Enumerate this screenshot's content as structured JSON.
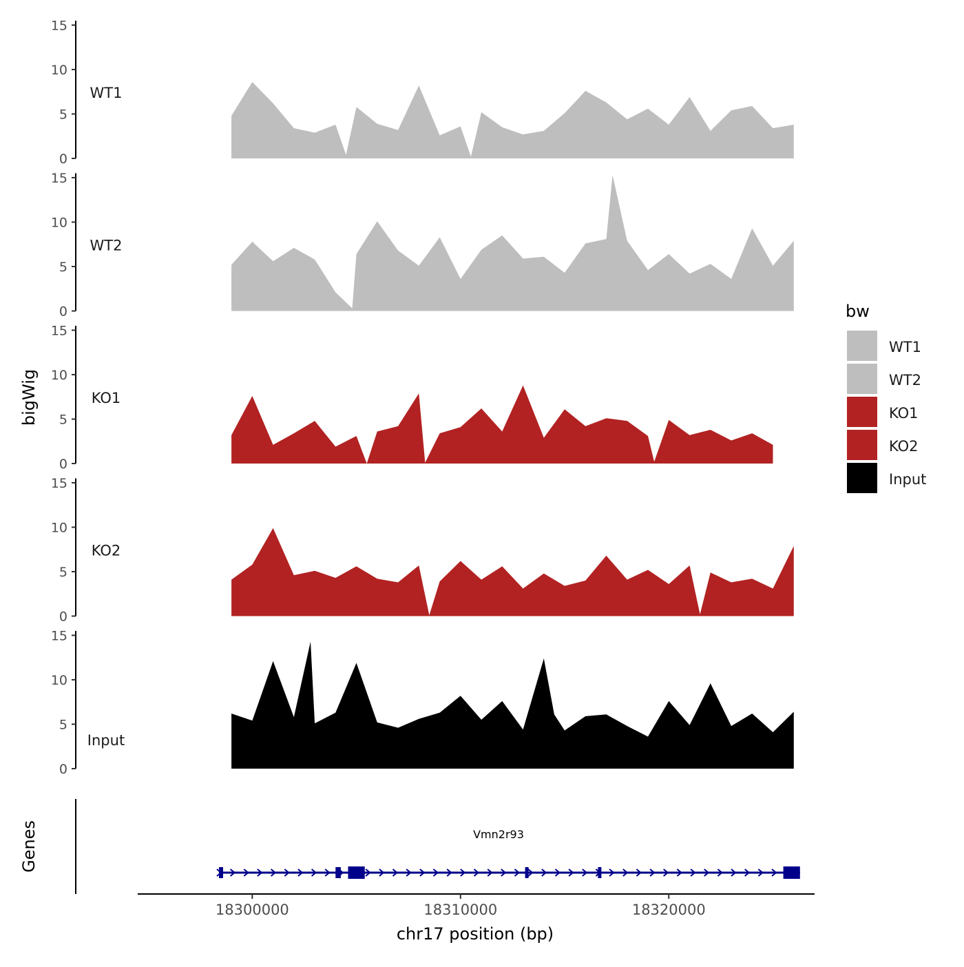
{
  "chart_data": {
    "type": "area",
    "ylabel": "bigWig",
    "genes_label": "Genes",
    "xlabel": "chr17 position (bp)",
    "x_range": [
      18294500,
      18327000
    ],
    "x_ticks": [
      18300000,
      18310000,
      18320000
    ],
    "x_tick_labels": [
      "18300000",
      "18310000",
      "18320000"
    ],
    "y_range": [
      0,
      15.5
    ],
    "y_ticks": [
      0,
      5,
      10,
      15
    ],
    "y_tick_labels": [
      "0",
      "5",
      "10",
      "15"
    ],
    "legend": {
      "title": "bw",
      "position": "right",
      "entries": [
        {
          "label": "WT1",
          "color": "#bebebe"
        },
        {
          "label": "WT2",
          "color": "#bebebe"
        },
        {
          "label": "KO1",
          "color": "#b22222"
        },
        {
          "label": "KO2",
          "color": "#b22222"
        },
        {
          "label": "Input",
          "color": "#000000"
        }
      ]
    },
    "series": [
      {
        "name": "WT1",
        "color": "#bebebe",
        "x": [
          18299000,
          18300000,
          18301000,
          18302000,
          18303000,
          18304000,
          18304500,
          18305000,
          18306000,
          18307000,
          18308000,
          18309000,
          18310000,
          18310500,
          18311000,
          18312000,
          18313000,
          18314000,
          18315000,
          18316000,
          18317000,
          18318000,
          18319000,
          18320000,
          18321000,
          18322000,
          18323000,
          18324000,
          18325000,
          18326000
        ],
        "values": [
          4.8,
          8.6,
          6.2,
          3.4,
          2.9,
          3.8,
          0.4,
          5.8,
          3.9,
          3.2,
          8.2,
          2.6,
          3.6,
          0.2,
          5.2,
          3.5,
          2.7,
          3.1,
          5.1,
          7.6,
          6.3,
          4.4,
          5.6,
          3.8,
          6.9,
          3.1,
          5.4,
          5.9,
          3.4,
          3.8
        ]
      },
      {
        "name": "WT2",
        "color": "#bebebe",
        "x": [
          18299000,
          18300000,
          18301000,
          18302000,
          18303000,
          18304000,
          18304800,
          18305000,
          18306000,
          18307000,
          18308000,
          18309000,
          18310000,
          18311000,
          18312000,
          18313000,
          18314000,
          18315000,
          18316000,
          18317000,
          18317300,
          18318000,
          18319000,
          18320000,
          18321000,
          18322000,
          18323000,
          18324000,
          18325000,
          18326000
        ],
        "values": [
          5.2,
          7.8,
          5.6,
          7.1,
          5.8,
          2.1,
          0.3,
          6.4,
          10.1,
          6.8,
          5.1,
          8.3,
          3.6,
          6.9,
          8.5,
          5.9,
          6.1,
          4.3,
          7.6,
          8.1,
          15.3,
          7.9,
          4.6,
          6.4,
          4.2,
          5.3,
          3.6,
          9.3,
          5.1,
          7.9
        ]
      },
      {
        "name": "KO1",
        "color": "#b22222",
        "x": [
          18299000,
          18300000,
          18301000,
          18302000,
          18303000,
          18304000,
          18305000,
          18305500,
          18306000,
          18307000,
          18308000,
          18308300,
          18309000,
          18310000,
          18311000,
          18312000,
          18313000,
          18314000,
          18315000,
          18316000,
          18317000,
          18318000,
          18319000,
          18319300,
          18320000,
          18321000,
          18322000,
          18323000,
          18324000,
          18325000
        ],
        "values": [
          3.2,
          7.6,
          2.1,
          3.4,
          4.8,
          1.9,
          3.1,
          0.0,
          3.6,
          4.2,
          7.9,
          0.1,
          3.4,
          4.1,
          6.2,
          3.6,
          8.8,
          2.9,
          6.1,
          4.2,
          5.1,
          4.8,
          3.1,
          0.2,
          4.9,
          3.2,
          3.8,
          2.6,
          3.4,
          2.1
        ]
      },
      {
        "name": "KO2",
        "color": "#b22222",
        "x": [
          18299000,
          18300000,
          18301000,
          18302000,
          18303000,
          18304000,
          18305000,
          18306000,
          18307000,
          18308000,
          18308500,
          18309000,
          18310000,
          18311000,
          18312000,
          18313000,
          18314000,
          18315000,
          18316000,
          18317000,
          18318000,
          18319000,
          18320000,
          18321000,
          18321500,
          18322000,
          18323000,
          18324000,
          18325000,
          18326000
        ],
        "values": [
          4.1,
          5.8,
          9.9,
          4.6,
          5.1,
          4.3,
          5.6,
          4.2,
          3.8,
          5.7,
          0.1,
          3.9,
          6.2,
          4.1,
          5.6,
          3.1,
          4.8,
          3.4,
          4.0,
          6.8,
          4.1,
          5.2,
          3.6,
          5.7,
          0.2,
          4.9,
          3.8,
          4.2,
          3.1,
          7.9
        ]
      },
      {
        "name": "Input",
        "color": "#000000",
        "x": [
          18299000,
          18300000,
          18301000,
          18302000,
          18302800,
          18303000,
          18304000,
          18305000,
          18306000,
          18307000,
          18308000,
          18309000,
          18310000,
          18311000,
          18312000,
          18313000,
          18314000,
          18314500,
          18315000,
          18316000,
          18317000,
          18318000,
          18319000,
          18320000,
          18321000,
          18322000,
          18323000,
          18324000,
          18325000,
          18326000
        ],
        "values": [
          6.2,
          5.4,
          12.1,
          5.8,
          14.3,
          5.1,
          6.3,
          11.9,
          5.2,
          4.6,
          5.6,
          6.3,
          8.2,
          5.5,
          7.6,
          4.4,
          12.4,
          6.1,
          4.3,
          5.9,
          6.1,
          4.8,
          3.6,
          7.6,
          4.9,
          9.6,
          4.8,
          6.2,
          4.1,
          6.4
        ]
      }
    ],
    "gene": {
      "name": "Vmn2r93",
      "color": "#00008b",
      "start": 18298400,
      "end": 18326300,
      "strand": "+",
      "exons": [
        [
          18298400,
          18298600
        ],
        [
          18304000,
          18304250
        ],
        [
          18304600,
          18305400
        ],
        [
          18313100,
          18313250
        ],
        [
          18316600,
          18316700
        ],
        [
          18325500,
          18326300
        ]
      ]
    }
  }
}
